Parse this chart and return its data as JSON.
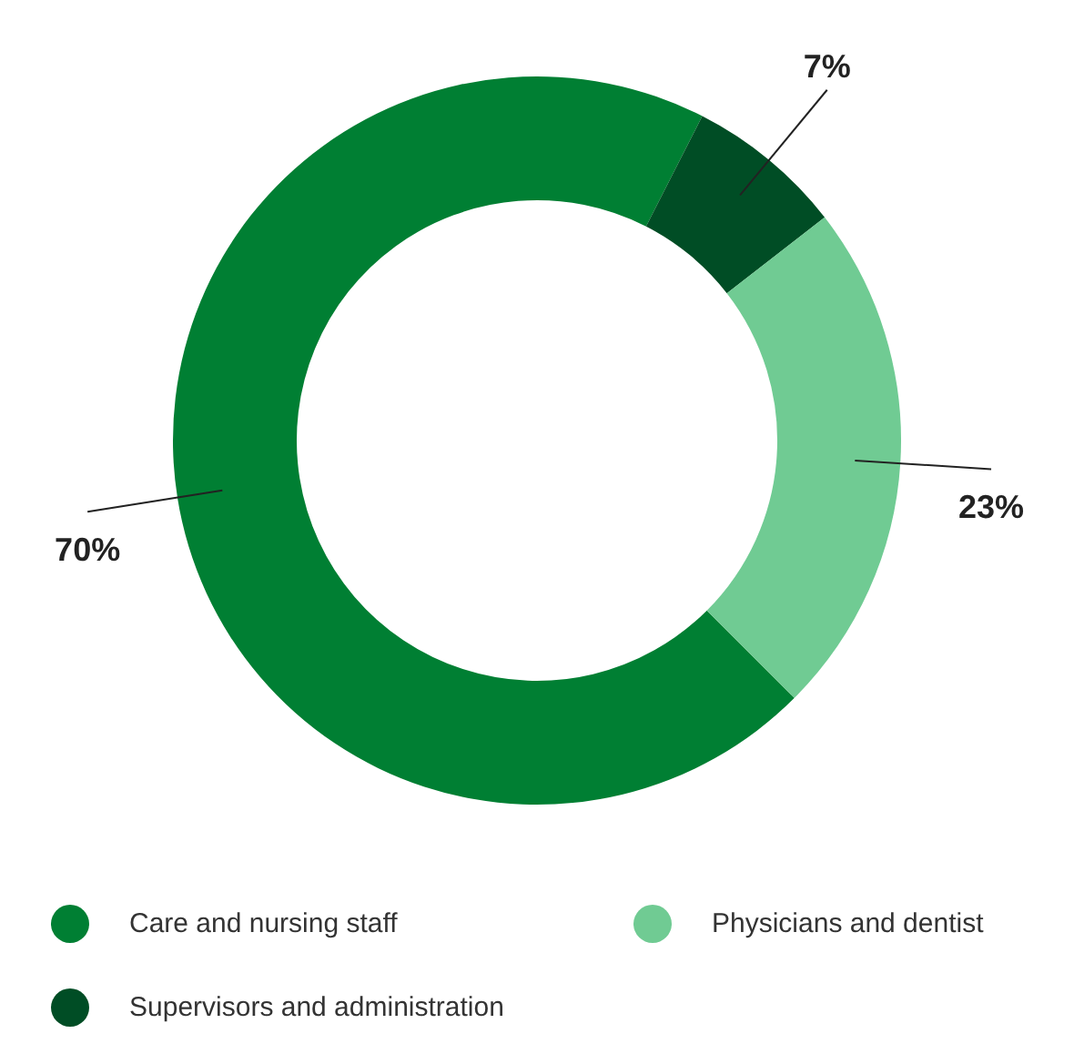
{
  "chart_data": {
    "type": "donut",
    "categories": [
      "Care and nursing staff",
      "Supervisors and administration",
      "Physicians and dentist"
    ],
    "values": [
      70,
      7,
      23
    ],
    "colors": [
      "#007f33",
      "#004d25",
      "#70cb93"
    ],
    "value_labels": [
      "70%",
      "7%",
      "23%"
    ],
    "legend": "bottom"
  }
}
